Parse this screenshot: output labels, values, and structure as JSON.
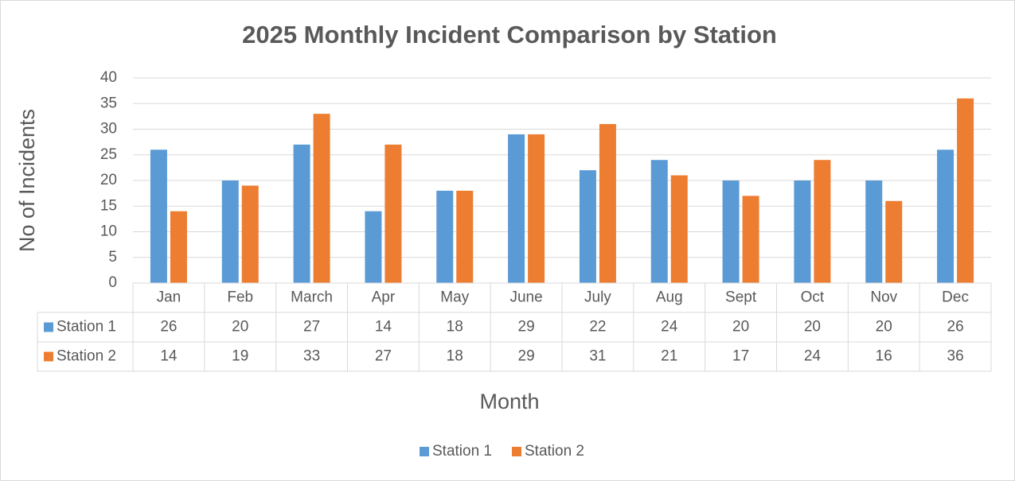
{
  "chart_data": {
    "type": "bar",
    "title": "2025 Monthly Incident Comparison by Station",
    "y_label": "No of Incidents",
    "x_label": "Month",
    "categories": [
      "Jan",
      "Feb",
      "March",
      "Apr",
      "May",
      "June",
      "July",
      "Aug",
      "Sept",
      "Oct",
      "Nov",
      "Dec"
    ],
    "series": [
      {
        "name": "Station 1",
        "color": "#5b9bd5",
        "values": [
          26,
          20,
          27,
          14,
          18,
          29,
          22,
          24,
          20,
          20,
          20,
          26
        ]
      },
      {
        "name": "Station 2",
        "color": "#ed7d31",
        "values": [
          14,
          19,
          33,
          27,
          18,
          29,
          31,
          21,
          17,
          24,
          16,
          36
        ]
      }
    ],
    "ylim": [
      0,
      40
    ],
    "yticks": [
      0,
      5,
      10,
      15,
      20,
      25,
      30,
      35,
      40
    ],
    "grid": true,
    "legend": "bottom"
  }
}
